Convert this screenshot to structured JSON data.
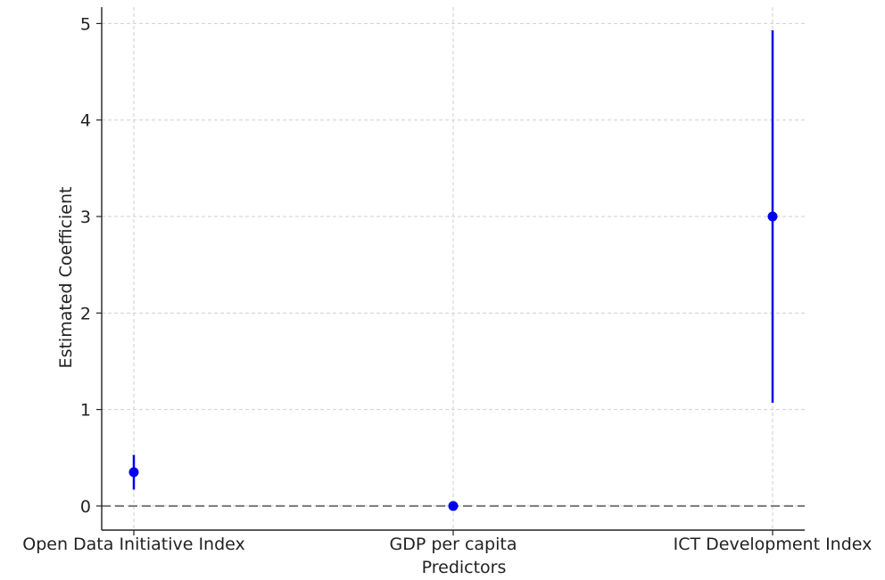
{
  "chart_data": {
    "type": "scatter",
    "title": "",
    "xlabel": "Predictors",
    "ylabel": "Estimated Coefficient",
    "categories": [
      "Open Data Initiative Index",
      "GDP per capita",
      "ICT Development Index"
    ],
    "estimates": [
      0.35,
      0.0,
      3.0
    ],
    "ci_lower": [
      0.17,
      0.0,
      1.07
    ],
    "ci_upper": [
      0.53,
      0.0,
      4.93
    ],
    "ylim": [
      -0.25,
      5.17
    ],
    "yticks": [
      "0",
      "1",
      "2",
      "3",
      "4",
      "5"
    ],
    "reference_line": 0,
    "grid": true,
    "colors": {
      "marker": "#0000ee",
      "errorbar": "#0000ee",
      "reference_line": "#808080",
      "grid": "#cfcfcf",
      "axis": "#222222"
    }
  }
}
